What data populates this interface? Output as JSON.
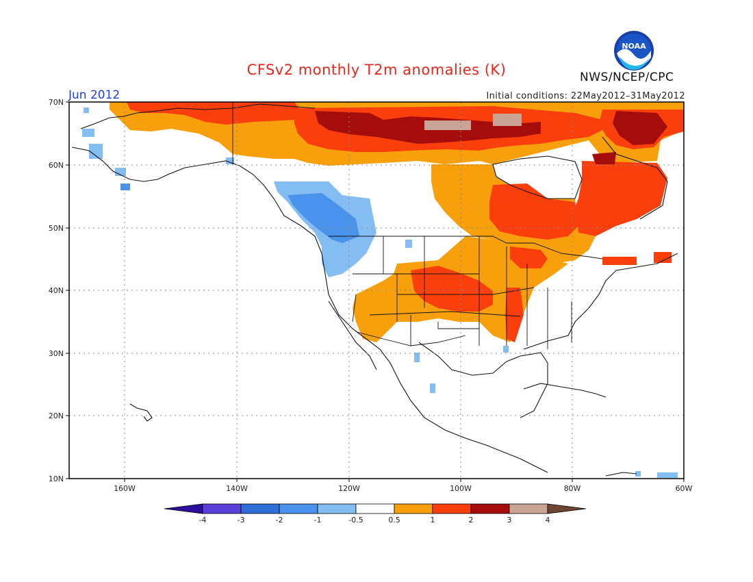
{
  "header": {
    "title": "CFSv2 monthly T2m anomalies (K)",
    "month": "Jun 2012",
    "initial_conditions": "Initial conditions: 22May2012–31May2012",
    "agency": "NWS/NCEP/CPC",
    "logo_text": "NOAA"
  },
  "map": {
    "lat_labels": [
      "70N",
      "60N",
      "50N",
      "40N",
      "30N",
      "20N",
      "10N"
    ],
    "lon_labels": [
      "160W",
      "140W",
      "120W",
      "100W",
      "80W",
      "60W"
    ]
  },
  "legend": {
    "tick_labels": [
      "-4",
      "-3",
      "-2",
      "-1",
      "-0.5",
      "0.5",
      "1",
      "2",
      "3",
      "4"
    ],
    "colors": [
      "#2c0f9e",
      "#5a3fd6",
      "#2e6ed6",
      "#4a93ec",
      "#84bdf2",
      "#ffffff",
      "#f7a00c",
      "#fa3e0c",
      "#a50d0d",
      "#c9a494",
      "#6f4633"
    ]
  }
}
